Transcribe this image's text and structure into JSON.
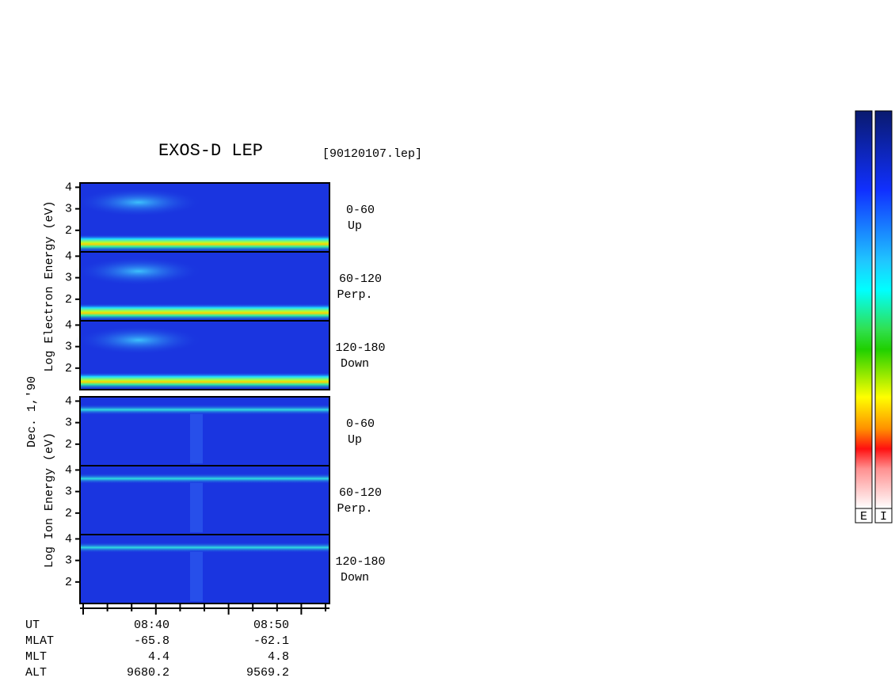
{
  "title": "EXOS-D LEP",
  "file": "[90120107.lep]",
  "date": "Dec. 1,'90",
  "ylim": [
    1,
    4.2
  ],
  "yticks": [
    2,
    3,
    4
  ],
  "groups": [
    {
      "ylabel": "Log Electron Energy (eV)",
      "panels": [
        {
          "range": "0-60",
          "dir": "Up"
        },
        {
          "range": "60-120",
          "dir": "Perp."
        },
        {
          "range": "120-180",
          "dir": "Down"
        }
      ]
    },
    {
      "ylabel": "Log Ion Energy (eV)",
      "panels": [
        {
          "range": "0-60",
          "dir": "Up"
        },
        {
          "range": "60-120",
          "dir": "Perp."
        },
        {
          "range": "120-180",
          "dir": "Down"
        }
      ]
    }
  ],
  "orbit": [
    {
      "label": "UT",
      "values": [
        "08:40",
        "08:50"
      ]
    },
    {
      "label": "MLAT",
      "values": [
        "-65.8",
        "-62.1"
      ]
    },
    {
      "label": "MLT",
      "values": [
        "4.4",
        "4.8"
      ]
    },
    {
      "label": "ALT",
      "values": [
        "9680.2",
        "9569.2"
      ]
    }
  ],
  "colorbar_labels": [
    "E",
    "I"
  ]
}
